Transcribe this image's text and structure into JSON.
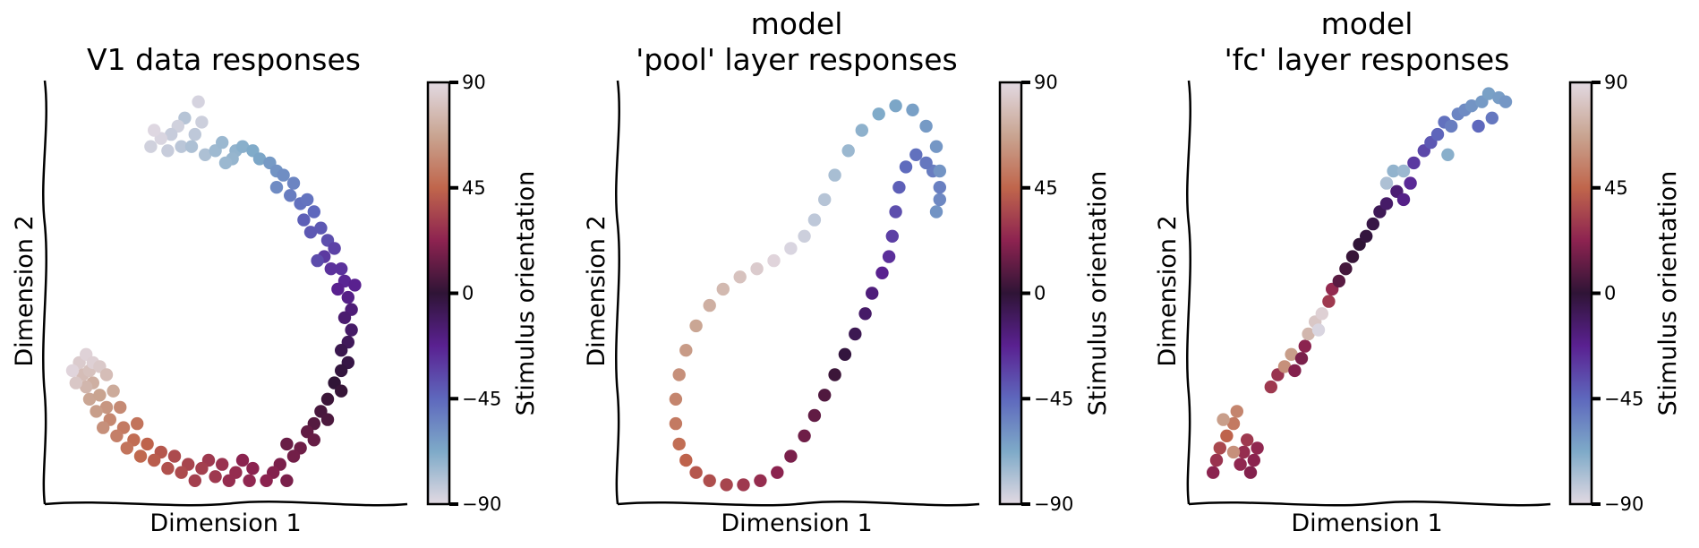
{
  "colormap": {
    "name": "twilight_shifted",
    "stops": [
      {
        "value": 90,
        "color": "#e2d9e2"
      },
      {
        "value": 67.5,
        "color": "#c9a592"
      },
      {
        "value": 45,
        "color": "#c0664c"
      },
      {
        "value": 22.5,
        "color": "#8d2350"
      },
      {
        "value": 0,
        "color": "#2f1436"
      },
      {
        "value": -22.5,
        "color": "#5a2191"
      },
      {
        "value": -45,
        "color": "#5e68bd"
      },
      {
        "value": -67.5,
        "color": "#7eaac8"
      },
      {
        "value": -90,
        "color": "#e2d9e2"
      }
    ]
  },
  "chart_data": [
    {
      "type": "scatter",
      "title": [
        "V1 data responses"
      ],
      "xlabel": "Dimension 1",
      "ylabel": "Dimension 2",
      "colorbar": {
        "label": "Stimulus orientation",
        "ticks": [
          "90",
          "45",
          "0",
          "−45",
          "−90"
        ],
        "range": [
          -90,
          90
        ]
      },
      "shape": "ring",
      "points": [
        [
          0.42,
          0.97,
          -87
        ],
        [
          0.43,
          0.92,
          -85
        ],
        [
          0.41,
          0.89,
          -82
        ],
        [
          0.38,
          0.93,
          -80
        ],
        [
          0.36,
          0.91,
          -86
        ],
        [
          0.34,
          0.89,
          -84
        ],
        [
          0.31,
          0.88,
          -88
        ],
        [
          0.29,
          0.9,
          -89
        ],
        [
          0.28,
          0.86,
          -86
        ],
        [
          0.33,
          0.85,
          -84
        ],
        [
          0.37,
          0.86,
          -81
        ],
        [
          0.4,
          0.86,
          -78
        ],
        [
          0.44,
          0.84,
          -78
        ],
        [
          0.47,
          0.85,
          -75
        ],
        [
          0.49,
          0.87,
          -74
        ],
        [
          0.53,
          0.85,
          -72
        ],
        [
          0.55,
          0.86,
          -70
        ],
        [
          0.52,
          0.83,
          -73
        ],
        [
          0.5,
          0.82,
          -74
        ],
        [
          0.58,
          0.85,
          -68
        ],
        [
          0.6,
          0.83,
          -66
        ],
        [
          0.63,
          0.82,
          -62
        ],
        [
          0.65,
          0.8,
          -60
        ],
        [
          0.67,
          0.79,
          -58
        ],
        [
          0.7,
          0.77,
          -55
        ],
        [
          0.69,
          0.74,
          -52
        ],
        [
          0.72,
          0.72,
          -48
        ],
        [
          0.74,
          0.73,
          -49
        ],
        [
          0.76,
          0.7,
          -45
        ],
        [
          0.73,
          0.68,
          -42
        ],
        [
          0.75,
          0.65,
          -40
        ],
        [
          0.78,
          0.66,
          -40
        ],
        [
          0.8,
          0.63,
          -37
        ],
        [
          0.82,
          0.61,
          -33
        ],
        [
          0.79,
          0.59,
          -30
        ],
        [
          0.81,
          0.56,
          -28
        ],
        [
          0.84,
          0.56,
          -28
        ],
        [
          0.85,
          0.53,
          -24
        ],
        [
          0.83,
          0.51,
          -22
        ],
        [
          0.86,
          0.49,
          -20
        ],
        [
          0.87,
          0.46,
          -16
        ],
        [
          0.85,
          0.44,
          -14
        ],
        [
          0.87,
          0.41,
          -12
        ],
        [
          0.86,
          0.38,
          -9
        ],
        [
          0.84,
          0.36,
          -6
        ],
        [
          0.86,
          0.33,
          -4
        ],
        [
          0.84,
          0.31,
          -2
        ],
        [
          0.82,
          0.28,
          0
        ],
        [
          0.84,
          0.26,
          2
        ],
        [
          0.8,
          0.24,
          3
        ],
        [
          0.78,
          0.21,
          6
        ],
        [
          0.8,
          0.19,
          7
        ],
        [
          0.76,
          0.18,
          9
        ],
        [
          0.74,
          0.16,
          12
        ],
        [
          0.76,
          0.14,
          13
        ],
        [
          0.72,
          0.12,
          15
        ],
        [
          0.7,
          0.1,
          16
        ],
        [
          0.68,
          0.13,
          14
        ],
        [
          0.66,
          0.08,
          18
        ],
        [
          0.64,
          0.06,
          20
        ],
        [
          0.62,
          0.04,
          22
        ],
        [
          0.58,
          0.07,
          22
        ],
        [
          0.57,
          0.04,
          24
        ],
        [
          0.55,
          0.09,
          22
        ],
        [
          0.53,
          0.06,
          26
        ],
        [
          0.51,
          0.04,
          26
        ],
        [
          0.49,
          0.08,
          28
        ],
        [
          0.47,
          0.05,
          30
        ],
        [
          0.45,
          0.09,
          30
        ],
        [
          0.43,
          0.07,
          32
        ],
        [
          0.41,
          0.04,
          32
        ],
        [
          0.39,
          0.08,
          34
        ],
        [
          0.37,
          0.06,
          36
        ],
        [
          0.35,
          0.1,
          36
        ],
        [
          0.33,
          0.07,
          38
        ],
        [
          0.31,
          0.11,
          40
        ],
        [
          0.29,
          0.09,
          42
        ],
        [
          0.27,
          0.13,
          44
        ],
        [
          0.25,
          0.1,
          46
        ],
        [
          0.23,
          0.14,
          48
        ],
        [
          0.21,
          0.12,
          50
        ],
        [
          0.2,
          0.17,
          52
        ],
        [
          0.18,
          0.15,
          54
        ],
        [
          0.16,
          0.19,
          57
        ],
        [
          0.14,
          0.17,
          60
        ],
        [
          0.15,
          0.22,
          62
        ],
        [
          0.12,
          0.21,
          65
        ],
        [
          0.1,
          0.24,
          68
        ],
        [
          0.13,
          0.25,
          67
        ],
        [
          0.11,
          0.28,
          72
        ],
        [
          0.09,
          0.27,
          75
        ],
        [
          0.08,
          0.3,
          78
        ],
        [
          0.1,
          0.31,
          80
        ],
        [
          0.07,
          0.33,
          84
        ],
        [
          0.09,
          0.35,
          87
        ],
        [
          0.11,
          0.33,
          86
        ],
        [
          0.13,
          0.32,
          83
        ],
        [
          0.15,
          0.3,
          78
        ],
        [
          0.06,
          0.28,
          82
        ],
        [
          0.05,
          0.31,
          88
        ],
        [
          0.17,
          0.26,
          70
        ],
        [
          0.19,
          0.22,
          58
        ],
        [
          0.24,
          0.18,
          50
        ],
        [
          0.68,
          0.04,
          18
        ],
        [
          0.88,
          0.52,
          -22
        ],
        [
          0.65,
          0.76,
          -57
        ],
        [
          0.77,
          0.58,
          -36
        ]
      ]
    },
    {
      "type": "scatter",
      "title": [
        "model",
        "'pool' layer responses"
      ],
      "xlabel": "Dimension 1",
      "ylabel": "Dimension 2",
      "colorbar": {
        "label": "Stimulus orientation",
        "ticks": [
          "90",
          "45",
          "0",
          "−45",
          "−90"
        ],
        "range": [
          -90,
          90
        ]
      },
      "shape": "curve",
      "points": [
        [
          0.91,
          0.7,
          -60
        ],
        [
          0.92,
          0.73,
          -56
        ],
        [
          0.92,
          0.76,
          -53
        ],
        [
          0.9,
          0.8,
          -52
        ],
        [
          0.88,
          0.82,
          -50
        ],
        [
          0.85,
          0.84,
          -48
        ],
        [
          0.82,
          0.81,
          -46
        ],
        [
          0.8,
          0.76,
          -42
        ],
        [
          0.79,
          0.7,
          -37
        ],
        [
          0.78,
          0.64,
          -32
        ],
        [
          0.77,
          0.59,
          -27
        ],
        [
          0.75,
          0.55,
          -22
        ],
        [
          0.72,
          0.5,
          -17
        ],
        [
          0.7,
          0.45,
          -12
        ],
        [
          0.67,
          0.4,
          -7
        ],
        [
          0.64,
          0.35,
          -2
        ],
        [
          0.61,
          0.3,
          3
        ],
        [
          0.58,
          0.25,
          8
        ],
        [
          0.55,
          0.2,
          12
        ],
        [
          0.52,
          0.15,
          15
        ],
        [
          0.48,
          0.1,
          18
        ],
        [
          0.44,
          0.06,
          22
        ],
        [
          0.39,
          0.04,
          26
        ],
        [
          0.34,
          0.03,
          30
        ],
        [
          0.29,
          0.03,
          34
        ],
        [
          0.24,
          0.04,
          37
        ],
        [
          0.2,
          0.06,
          40
        ],
        [
          0.17,
          0.09,
          44
        ],
        [
          0.15,
          0.13,
          48
        ],
        [
          0.14,
          0.18,
          52
        ],
        [
          0.14,
          0.24,
          56
        ],
        [
          0.15,
          0.3,
          60
        ],
        [
          0.17,
          0.36,
          64
        ],
        [
          0.2,
          0.42,
          68
        ],
        [
          0.24,
          0.47,
          72
        ],
        [
          0.28,
          0.51,
          76
        ],
        [
          0.33,
          0.54,
          80
        ],
        [
          0.38,
          0.56,
          84
        ],
        [
          0.43,
          0.58,
          88
        ],
        [
          0.48,
          0.61,
          -88
        ],
        [
          0.52,
          0.64,
          -85
        ],
        [
          0.55,
          0.68,
          -82
        ],
        [
          0.58,
          0.73,
          -80
        ],
        [
          0.61,
          0.79,
          -77
        ],
        [
          0.65,
          0.85,
          -74
        ],
        [
          0.69,
          0.9,
          -71
        ],
        [
          0.74,
          0.94,
          -68
        ],
        [
          0.79,
          0.96,
          -66
        ],
        [
          0.84,
          0.95,
          -64
        ],
        [
          0.88,
          0.91,
          -62
        ],
        [
          0.91,
          0.86,
          -61
        ],
        [
          0.92,
          0.8,
          -60
        ]
      ]
    },
    {
      "type": "scatter",
      "title": [
        "model",
        "'fc' layer responses"
      ],
      "xlabel": "Dimension 1",
      "ylabel": "Dimension 2",
      "colorbar": {
        "label": "Stimulus orientation",
        "ticks": [
          "90",
          "45",
          "0",
          "−45",
          "−90"
        ],
        "range": [
          -90,
          90
        ]
      },
      "shape": "diagonal",
      "points": [
        [
          0.04,
          0.06,
          22
        ],
        [
          0.05,
          0.09,
          28
        ],
        [
          0.06,
          0.12,
          35
        ],
        [
          0.08,
          0.15,
          44
        ],
        [
          0.1,
          0.18,
          52
        ],
        [
          0.11,
          0.21,
          56
        ],
        [
          0.12,
          0.08,
          24
        ],
        [
          0.13,
          0.11,
          26
        ],
        [
          0.14,
          0.14,
          30
        ],
        [
          0.15,
          0.06,
          20
        ],
        [
          0.16,
          0.09,
          22
        ],
        [
          0.17,
          0.12,
          24
        ],
        [
          0.1,
          0.11,
          60
        ],
        [
          0.07,
          0.19,
          65
        ],
        [
          0.21,
          0.27,
          30
        ],
        [
          0.23,
          0.3,
          28
        ],
        [
          0.25,
          0.32,
          60
        ],
        [
          0.27,
          0.35,
          65
        ],
        [
          0.28,
          0.31,
          20
        ],
        [
          0.3,
          0.34,
          18
        ],
        [
          0.31,
          0.37,
          22
        ],
        [
          0.32,
          0.4,
          75
        ],
        [
          0.34,
          0.43,
          82
        ],
        [
          0.36,
          0.45,
          86
        ],
        [
          0.35,
          0.41,
          -88
        ],
        [
          0.38,
          0.48,
          30
        ],
        [
          0.39,
          0.51,
          25
        ],
        [
          0.41,
          0.53,
          10
        ],
        [
          0.43,
          0.56,
          5
        ],
        [
          0.45,
          0.59,
          2
        ],
        [
          0.47,
          0.62,
          0
        ],
        [
          0.49,
          0.64,
          -2
        ],
        [
          0.51,
          0.67,
          -4
        ],
        [
          0.53,
          0.7,
          -8
        ],
        [
          0.55,
          0.72,
          -12
        ],
        [
          0.58,
          0.75,
          -15
        ],
        [
          0.6,
          0.73,
          -20
        ],
        [
          0.62,
          0.77,
          -25
        ],
        [
          0.55,
          0.77,
          -78
        ],
        [
          0.57,
          0.8,
          -72
        ],
        [
          0.63,
          0.82,
          -30
        ],
        [
          0.66,
          0.85,
          -35
        ],
        [
          0.68,
          0.87,
          -40
        ],
        [
          0.7,
          0.89,
          -44
        ],
        [
          0.72,
          0.92,
          -48
        ],
        [
          0.74,
          0.91,
          -52
        ],
        [
          0.76,
          0.94,
          -55
        ],
        [
          0.78,
          0.95,
          -57
        ],
        [
          0.8,
          0.96,
          -60
        ],
        [
          0.83,
          0.97,
          -62
        ],
        [
          0.85,
          0.99,
          -64
        ],
        [
          0.88,
          0.98,
          -63
        ],
        [
          0.9,
          0.97,
          -61
        ],
        [
          0.86,
          0.93,
          -50
        ],
        [
          0.82,
          0.91,
          -45
        ],
        [
          0.73,
          0.84,
          -70
        ],
        [
          0.6,
          0.8,
          -74
        ]
      ]
    }
  ]
}
